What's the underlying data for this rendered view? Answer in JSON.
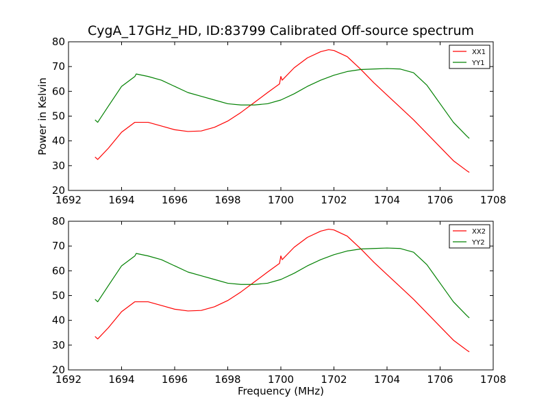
{
  "chart_data": [
    {
      "type": "line",
      "title": "CygA_17GHz_HD, ID:83799 Calibrated Off-source spectrum",
      "xlabel": "",
      "ylabel": "Power in Kelvin",
      "xlim": [
        1692,
        1708
      ],
      "ylim": [
        20,
        80
      ],
      "xticks": [
        1692,
        1694,
        1696,
        1698,
        1700,
        1702,
        1704,
        1706,
        1708
      ],
      "yticks": [
        20,
        30,
        40,
        50,
        60,
        70,
        80
      ],
      "grid": false,
      "legend": "top-right",
      "series": [
        {
          "name": "XX1",
          "color": "#ff0000",
          "x": [
            1693.0,
            1693.1,
            1693.5,
            1694.0,
            1694.5,
            1695.0,
            1695.5,
            1696.0,
            1696.5,
            1697.0,
            1697.5,
            1698.0,
            1698.5,
            1699.0,
            1699.5,
            1699.95,
            1700.0,
            1700.05,
            1700.5,
            1701.0,
            1701.5,
            1701.8,
            1702.0,
            1702.5,
            1703.0,
            1703.5,
            1704.0,
            1704.5,
            1705.0,
            1705.5,
            1706.0,
            1706.5,
            1707.0,
            1707.1
          ],
          "values": [
            33.5,
            32.5,
            37.0,
            43.5,
            47.5,
            47.5,
            46.0,
            44.5,
            43.8,
            44.0,
            45.5,
            48.0,
            51.5,
            55.5,
            59.5,
            63.0,
            66.0,
            64.5,
            69.5,
            73.5,
            76.0,
            76.8,
            76.5,
            74.0,
            69.0,
            63.5,
            58.5,
            53.5,
            48.5,
            43.0,
            37.5,
            32.0,
            28.0,
            27.3
          ]
        },
        {
          "name": "YY1",
          "color": "#008000",
          "x": [
            1693.0,
            1693.1,
            1693.5,
            1694.0,
            1694.5,
            1694.55,
            1695.0,
            1695.5,
            1696.0,
            1696.5,
            1697.0,
            1697.5,
            1698.0,
            1698.5,
            1699.0,
            1699.5,
            1700.0,
            1700.5,
            1701.0,
            1701.5,
            1702.0,
            1702.5,
            1703.0,
            1703.5,
            1704.0,
            1704.5,
            1705.0,
            1705.5,
            1706.0,
            1706.5,
            1707.0,
            1707.1
          ],
          "values": [
            48.5,
            47.5,
            54.0,
            62.0,
            66.0,
            67.0,
            66.0,
            64.5,
            62.0,
            59.5,
            58.0,
            56.5,
            55.0,
            54.5,
            54.5,
            55.0,
            56.5,
            59.0,
            62.0,
            64.5,
            66.5,
            68.0,
            68.8,
            69.0,
            69.2,
            69.0,
            67.5,
            62.5,
            55.0,
            47.5,
            42.0,
            41.0
          ]
        }
      ]
    },
    {
      "type": "line",
      "title": "",
      "xlabel": "Frequency (MHz)",
      "ylabel": "",
      "xlim": [
        1692,
        1708
      ],
      "ylim": [
        20,
        80
      ],
      "xticks": [
        1692,
        1694,
        1696,
        1698,
        1700,
        1702,
        1704,
        1706,
        1708
      ],
      "yticks": [
        20,
        30,
        40,
        50,
        60,
        70,
        80
      ],
      "grid": false,
      "legend": "top-right",
      "series": [
        {
          "name": "XX2",
          "color": "#ff0000",
          "x": [
            1693.0,
            1693.1,
            1693.5,
            1694.0,
            1694.5,
            1695.0,
            1695.5,
            1696.0,
            1696.5,
            1697.0,
            1697.5,
            1698.0,
            1698.5,
            1699.0,
            1699.5,
            1699.95,
            1700.0,
            1700.05,
            1700.5,
            1701.0,
            1701.5,
            1701.8,
            1702.0,
            1702.5,
            1703.0,
            1703.5,
            1704.0,
            1704.5,
            1705.0,
            1705.5,
            1706.0,
            1706.5,
            1707.0,
            1707.1
          ],
          "values": [
            33.5,
            32.5,
            37.0,
            43.5,
            47.5,
            47.5,
            46.0,
            44.5,
            43.8,
            44.0,
            45.5,
            48.0,
            51.5,
            55.5,
            59.5,
            63.0,
            66.0,
            64.5,
            69.5,
            73.5,
            76.0,
            76.8,
            76.5,
            74.0,
            69.0,
            63.5,
            58.5,
            53.5,
            48.5,
            43.0,
            37.5,
            32.0,
            28.0,
            27.3
          ]
        },
        {
          "name": "YY2",
          "color": "#008000",
          "x": [
            1693.0,
            1693.1,
            1693.5,
            1694.0,
            1694.5,
            1694.55,
            1695.0,
            1695.5,
            1696.0,
            1696.5,
            1697.0,
            1697.5,
            1698.0,
            1698.5,
            1699.0,
            1699.5,
            1700.0,
            1700.5,
            1701.0,
            1701.5,
            1702.0,
            1702.5,
            1703.0,
            1703.5,
            1704.0,
            1704.5,
            1705.0,
            1705.5,
            1706.0,
            1706.5,
            1707.0,
            1707.1
          ],
          "values": [
            48.5,
            47.5,
            54.0,
            62.0,
            66.0,
            67.0,
            66.0,
            64.5,
            62.0,
            59.5,
            58.0,
            56.5,
            55.0,
            54.5,
            54.5,
            55.0,
            56.5,
            59.0,
            62.0,
            64.5,
            66.5,
            68.0,
            68.8,
            69.0,
            69.2,
            69.0,
            67.5,
            62.5,
            55.0,
            47.5,
            42.0,
            41.0
          ]
        }
      ]
    }
  ]
}
